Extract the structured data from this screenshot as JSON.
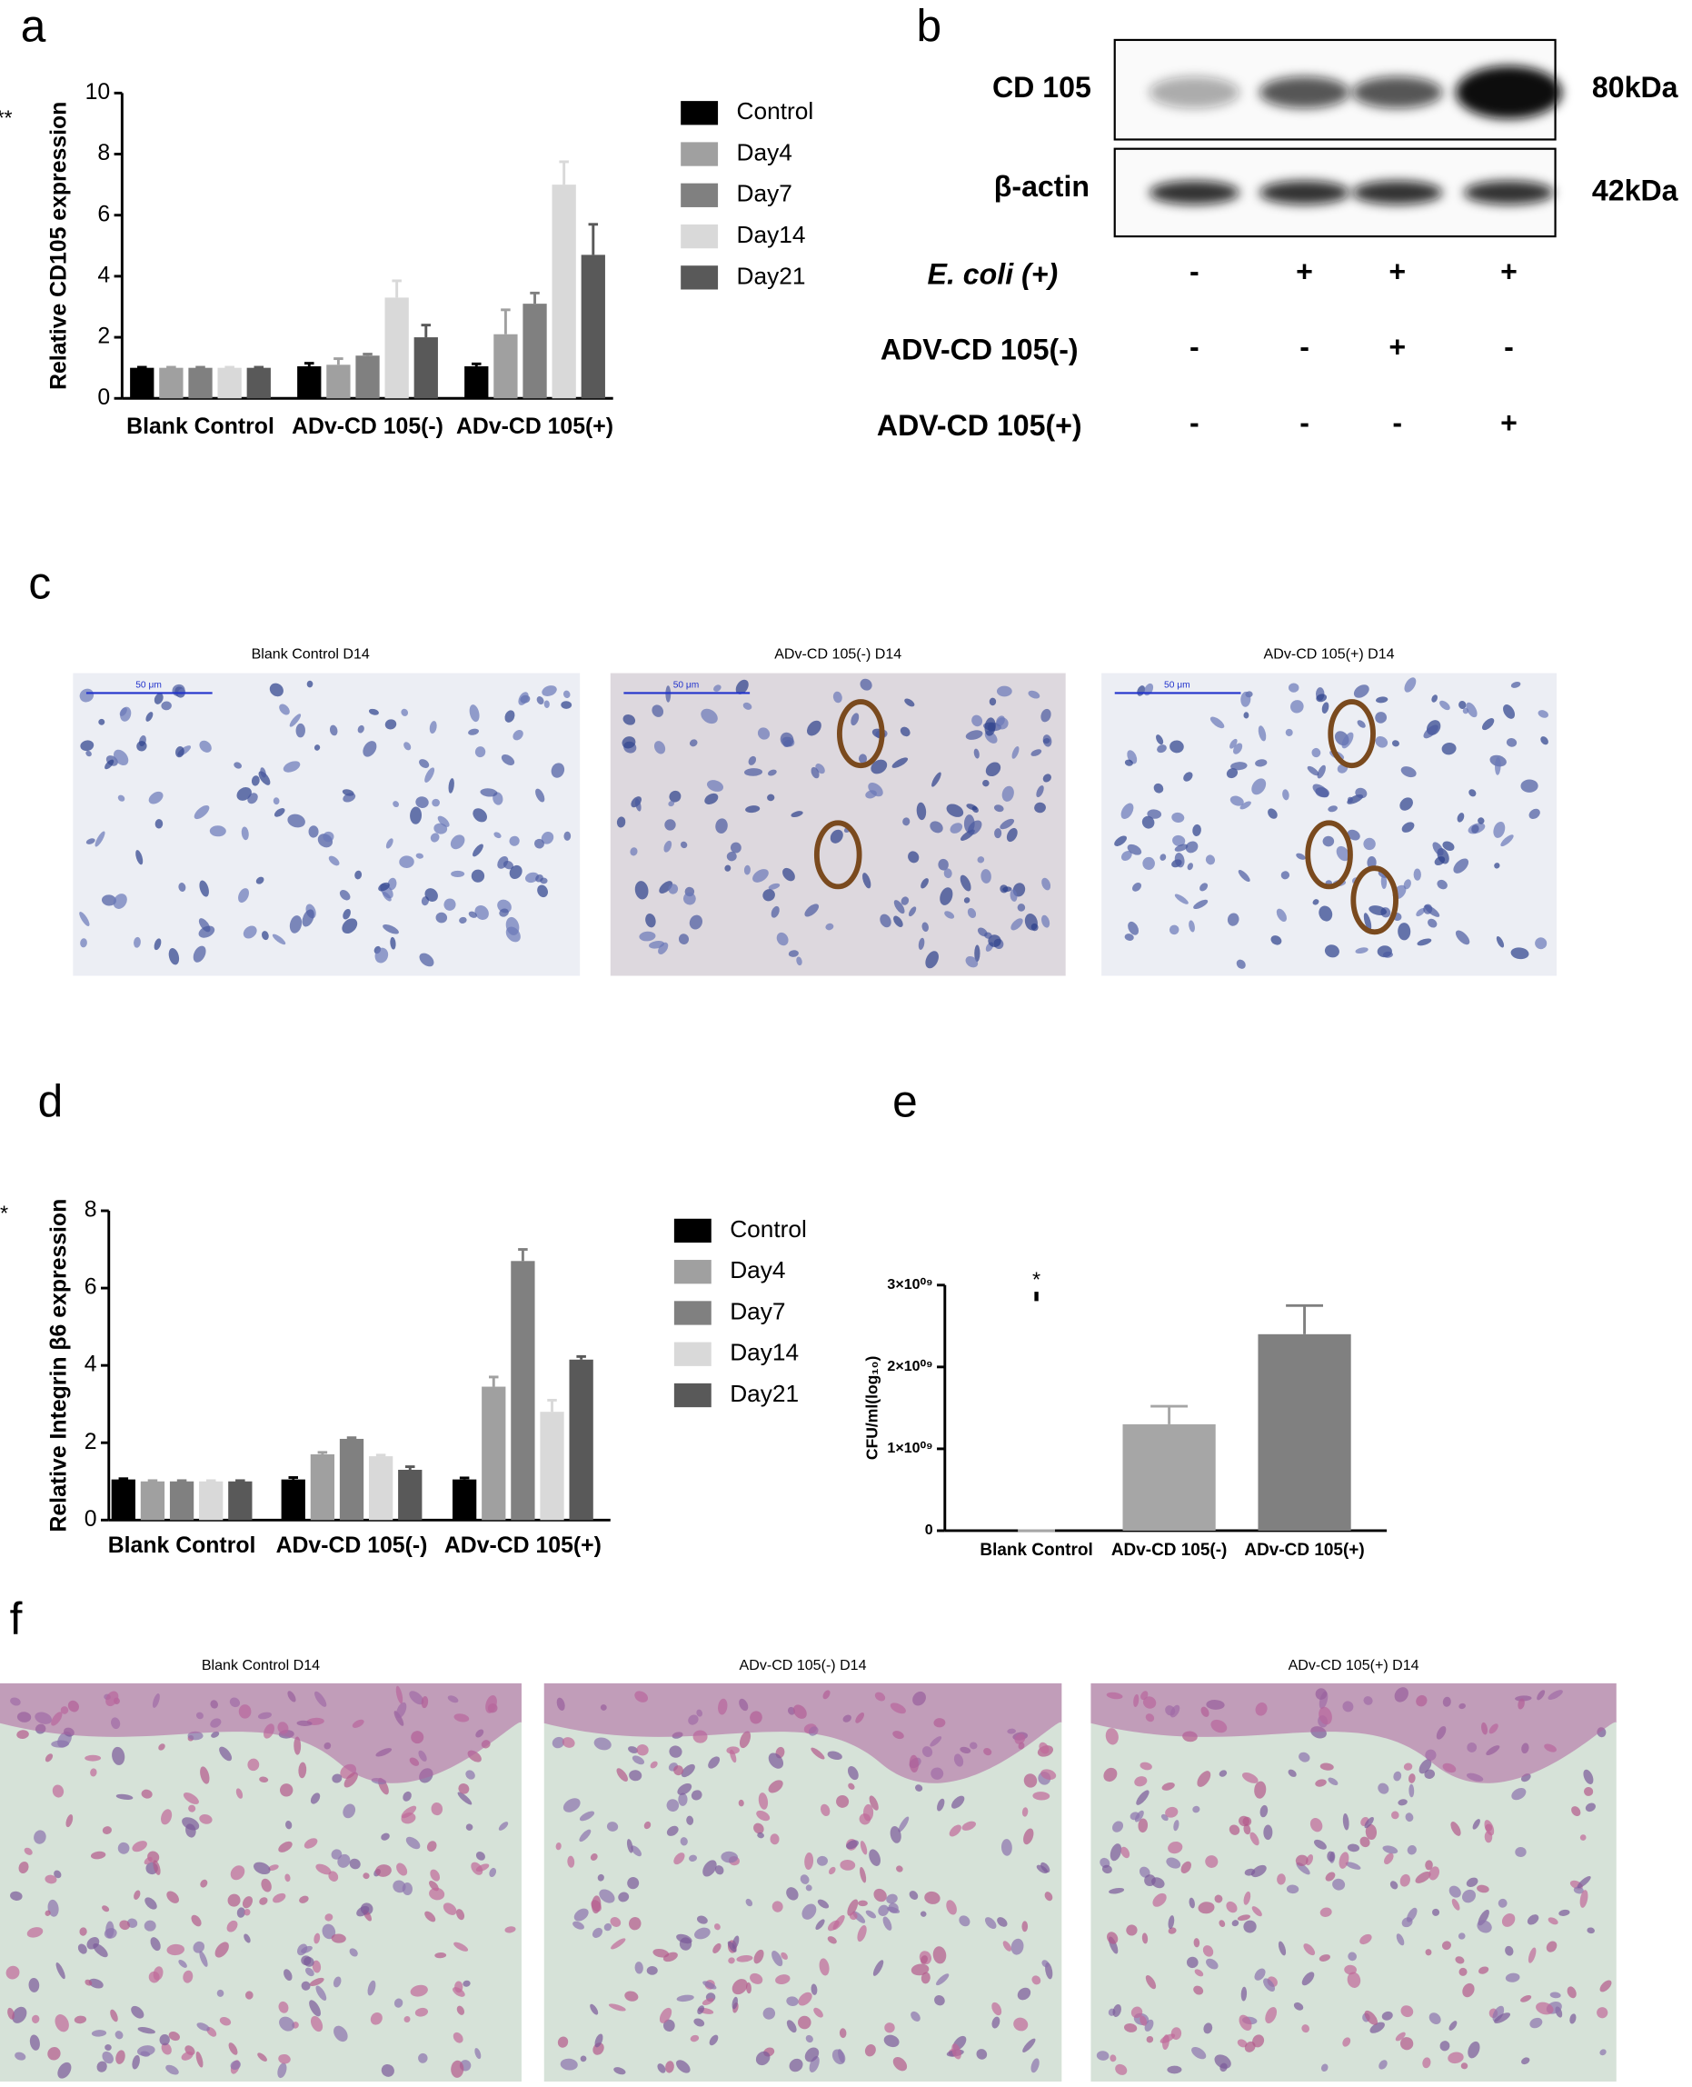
{
  "panel_labels": [
    "a",
    "b",
    "c",
    "d",
    "e",
    "f"
  ],
  "chart_data": [
    {
      "type": "grouped-bar",
      "y_label": "Relative CD105 expression",
      "categories": [
        "Blank Control",
        "ADv-CD 105(-)",
        "ADv-CD 105(+)"
      ],
      "series": [
        {
          "name": "Control",
          "color": "#000000",
          "values": [
            1,
            1.05,
            1.05
          ],
          "errors": [
            0.02,
            0.1,
            0.08
          ]
        },
        {
          "name": "Day4",
          "color": "#a0a0a0",
          "values": [
            1,
            1.1,
            2.1
          ],
          "errors": [
            0.02,
            0.2,
            0.8
          ]
        },
        {
          "name": "Day7",
          "color": "#808080",
          "values": [
            1,
            1.4,
            3.1
          ],
          "errors": [
            0.02,
            0.05,
            0.35
          ]
        },
        {
          "name": "Day14",
          "color": "#d9d9d9",
          "values": [
            1,
            3.3,
            7
          ],
          "errors": [
            0.02,
            0.55,
            0.75
          ]
        },
        {
          "name": "Day21",
          "color": "#595959",
          "values": [
            1,
            2,
            4.7
          ],
          "errors": [
            0.02,
            0.4,
            1
          ]
        }
      ],
      "ylim": [
        0,
        10
      ],
      "yticks": [
        0,
        2,
        4,
        6,
        8,
        10
      ],
      "annotation": "***"
    },
    {
      "type": "grouped-bar",
      "y_label": "Relative Integrin β6 expression",
      "categories": [
        "Blank Control",
        "ADv-CD 105(-)",
        "ADv-CD 105(+)"
      ],
      "series": [
        {
          "name": "Control",
          "color": "#000000",
          "values": [
            1.05,
            1.05,
            1.05
          ],
          "errors": [
            0.02,
            0.05,
            0.04
          ]
        },
        {
          "name": "Day4",
          "color": "#a0a0a0",
          "values": [
            1,
            1.7,
            3.45
          ],
          "errors": [
            0.02,
            0.05,
            0.25
          ]
        },
        {
          "name": "Day7",
          "color": "#808080",
          "values": [
            1,
            2.1,
            6.7
          ],
          "errors": [
            0.02,
            0.03,
            0.3
          ]
        },
        {
          "name": "Day14",
          "color": "#d9d9d9",
          "values": [
            1,
            1.65,
            2.8
          ],
          "errors": [
            0.02,
            0.03,
            0.3
          ]
        },
        {
          "name": "Day21",
          "color": "#595959",
          "values": [
            1,
            1.3,
            4.15
          ],
          "errors": [
            0.02,
            0.08,
            0.08
          ]
        }
      ],
      "ylim": [
        0,
        8
      ],
      "yticks": [
        0,
        2,
        4,
        6,
        8
      ],
      "annotation": "**"
    },
    {
      "type": "bar",
      "y_label": "CFU/ml(log₁₀)",
      "categories": [
        "Blank Control",
        "ADv-CD 105(-)",
        "ADv-CD 105(+)"
      ],
      "values": [
        0,
        1300000000,
        2400000000
      ],
      "errors": [
        0,
        220000000,
        350000000
      ],
      "colors": [
        "#a6a6a6",
        "#a6a6a6",
        "#808080"
      ],
      "ylim": [
        0,
        3000000000
      ],
      "yticks": [
        0,
        {
          "value": 1000000000,
          "label": "1×10⁰⁹"
        },
        {
          "value": 2000000000,
          "label": "2×10⁰⁹"
        },
        {
          "value": 3000000000,
          "label": "3×10⁰⁹"
        }
      ],
      "annotation": "*"
    }
  ],
  "blot": {
    "rows": [
      {
        "label": "CD 105",
        "size": "80kDa"
      },
      {
        "label": "β-actin",
        "size": "42kDa"
      }
    ],
    "conditions": [
      {
        "label": "E. coli (+)",
        "values": [
          "-",
          "+",
          "+",
          "+"
        ]
      },
      {
        "label": "ADV-CD 105(-)",
        "values": [
          "-",
          "-",
          "+",
          "-"
        ]
      },
      {
        "label": "ADV-CD 105(+)",
        "values": [
          "-",
          "-",
          "-",
          "+"
        ]
      }
    ]
  },
  "ihc": [
    {
      "title": "Blank Control  D14",
      "scale": "50 μm"
    },
    {
      "title": "ADv-CD 105(-)  D14",
      "scale": "50 μm"
    },
    {
      "title": "ADv-CD 105(+)  D14",
      "scale": "50 μm"
    }
  ],
  "he": [
    {
      "title": "Blank Control  D14"
    },
    {
      "title": "ADv-CD 105(-)  D14"
    },
    {
      "title": "ADv-CD 105(+)  D14"
    }
  ]
}
